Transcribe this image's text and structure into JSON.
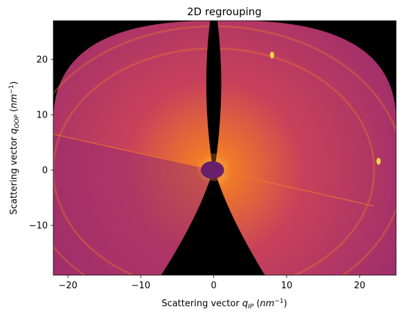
{
  "chart_data": {
    "type": "heatmap",
    "title": "2D regrouping",
    "xlabel": {
      "prefix": "Scattering vector ",
      "symbol": "q",
      "sub": "IP",
      "unit_open": " (",
      "unit": "nm",
      "exp": "−1",
      "unit_close": ")"
    },
    "ylabel": {
      "prefix": "Scattering vector ",
      "symbol": "q",
      "sub": "OOP",
      "unit_open": " (",
      "unit": "nm",
      "exp": "−1",
      "unit_close": ")"
    },
    "xlim": [
      -22,
      25
    ],
    "ylim": [
      -19,
      27
    ],
    "xticks": [
      -20,
      -10,
      0,
      10,
      20
    ],
    "yticks": [
      -10,
      0,
      10,
      20
    ],
    "xtick_labels": [
      "−20",
      "−10",
      "0",
      "10",
      "20"
    ],
    "ytick_labels": [
      "−10",
      "0",
      "10",
      "20"
    ],
    "colormap": "inferno",
    "background_color": "#000000",
    "colors": {
      "low": "#9a2c6e",
      "mid": "#c8415a",
      "high": "#f07a28",
      "hot": "#fcd34a",
      "beamstop": "#6a1f6a"
    },
    "features": {
      "beam_center": [
        0,
        0
      ],
      "beamstop_radius": 1.6,
      "scattering_rings_q": [
        22,
        26
      ],
      "bright_spots": [
        {
          "x": 22.6,
          "y": 1.6
        },
        {
          "x": 8.0,
          "y": 20.8
        }
      ],
      "detector_gap_line": {
        "from": [
          -22,
          6.5
        ],
        "to": [
          22,
          -6.5
        ]
      }
    }
  }
}
